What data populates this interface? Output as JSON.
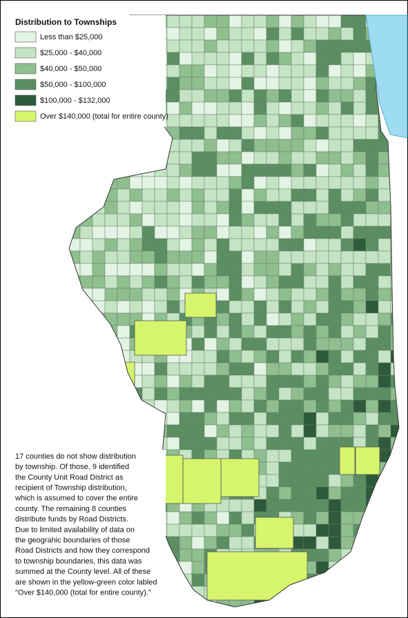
{
  "legend": {
    "title": "Distribution to Townships",
    "items": [
      {
        "label": "Less than $25,000",
        "color": "#e4f4e4"
      },
      {
        "label": "$25,000 - $40,000",
        "color": "#c4e4c4"
      },
      {
        "label": "$40,000 - $50,000",
        "color": "#8fbe8f"
      },
      {
        "label": "$50,000 - $100,000",
        "color": "#5b8f62"
      },
      {
        "label": "$100,000 - $132,000",
        "color": "#2d5a3a"
      },
      {
        "label": "Over $140,000 (total for entire county)",
        "color": "#d6f56c"
      }
    ]
  },
  "note": {
    "lines": [
      "17 counties do not show distribution",
      "by township. Of those, 9 identified",
      "the County Unit Road District as",
      "recipient of Township distribution,",
      "which is assumed to cover the entire",
      "county. The remaining 8 counties",
      "distribute funds by Road Districts.",
      "Due to limited availability of data on",
      "the geograhic boundaries of those",
      "Road Districts and how they correspond",
      "to township boundaries, this data was",
      "summed at the County level.  All of these",
      "are shown in the yellow-green color labled",
      "\"Over $140,000 (total for entire county).\""
    ]
  }
}
